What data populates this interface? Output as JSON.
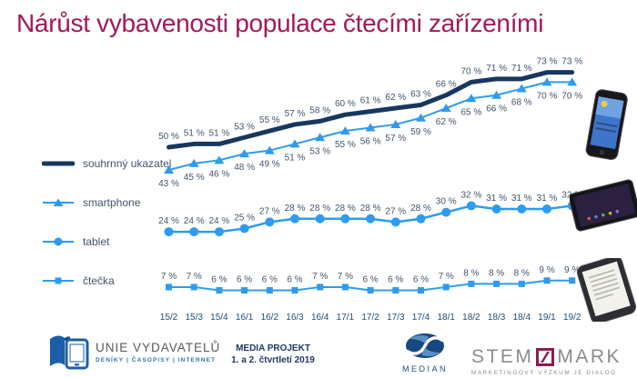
{
  "title": "Nárůst vybavenosti populace čtecími zařízeními",
  "colors": {
    "title": "#A01A5A",
    "dark_line": "#17375E",
    "light_blue": "#2E9BEF",
    "data_label": "#44546A",
    "axis_label": "#1F4E79",
    "footer_navy": "#1F3864",
    "stemmark_gray": "#8C8C8C",
    "stemmark_maroon": "#8E1B4D",
    "unie_blue": "#1B5FAA",
    "unie_text_gray": "#58595B",
    "unie_sub_blue": "#2E75B6"
  },
  "chart_data": {
    "type": "line",
    "unit": "%",
    "grid": false,
    "legend_position": "left",
    "ylim": [
      0,
      80
    ],
    "categories": [
      "15/2",
      "15/3",
      "15/4",
      "16/1",
      "16/2",
      "16/3",
      "16/4",
      "17/1",
      "17/2",
      "17/3",
      "17/4",
      "18/1",
      "18/2",
      "18/3",
      "18/4",
      "19/1",
      "19/2"
    ],
    "series": [
      {
        "name": "souhrnný ukazatel",
        "color": "#17375E",
        "line_width": 5,
        "marker": "none",
        "label_position": "above",
        "values": [
          50,
          51,
          51,
          53,
          55,
          57,
          58,
          60,
          61,
          62,
          63,
          66,
          70,
          71,
          71,
          73,
          73
        ]
      },
      {
        "name": "smartphone",
        "color": "#2E9BEF",
        "line_width": 2,
        "marker": "triangle",
        "label_position": "below",
        "values": [
          43,
          45,
          46,
          48,
          49,
          51,
          53,
          55,
          56,
          57,
          59,
          62,
          65,
          66,
          68,
          70,
          70
        ]
      },
      {
        "name": "tablet",
        "color": "#2E9BEF",
        "line_width": 2.5,
        "marker": "circle",
        "label_position": "above",
        "values": [
          24,
          24,
          24,
          25,
          27,
          28,
          28,
          28,
          28,
          27,
          28,
          30,
          32,
          31,
          31,
          31,
          32
        ]
      },
      {
        "name": "čtečka",
        "color": "#2E9BEF",
        "line_width": 2,
        "marker": "square",
        "label_position": "above",
        "values": [
          7,
          7,
          6,
          6,
          6,
          6,
          7,
          7,
          6,
          6,
          6,
          7,
          8,
          8,
          8,
          9,
          9
        ]
      }
    ]
  },
  "icons": {
    "unie_logo": "open-book-with-tablet",
    "median_logo": "blue-ellipse-swirl",
    "stemmark_logo": "maroon-square-slash",
    "device_images": [
      "smartphone-photo",
      "tablet-photo",
      "ereader-photo"
    ]
  },
  "footer": {
    "unie": {
      "name": "UNIE VYDAVATELŮ",
      "subtitle": "DENÍKY | ČASOPISY | INTERNET"
    },
    "media_projekt": {
      "line1": "MEDIA PROJEKT",
      "line2": "1. a 2. čtvrtletí 2019"
    },
    "median": {
      "name": "MEDIAN"
    },
    "stemmark": {
      "part1": "STEM",
      "part2": "MARK",
      "subtitle": "MARKETINGOVÝ VÝZKUM JE DIALOG"
    }
  }
}
